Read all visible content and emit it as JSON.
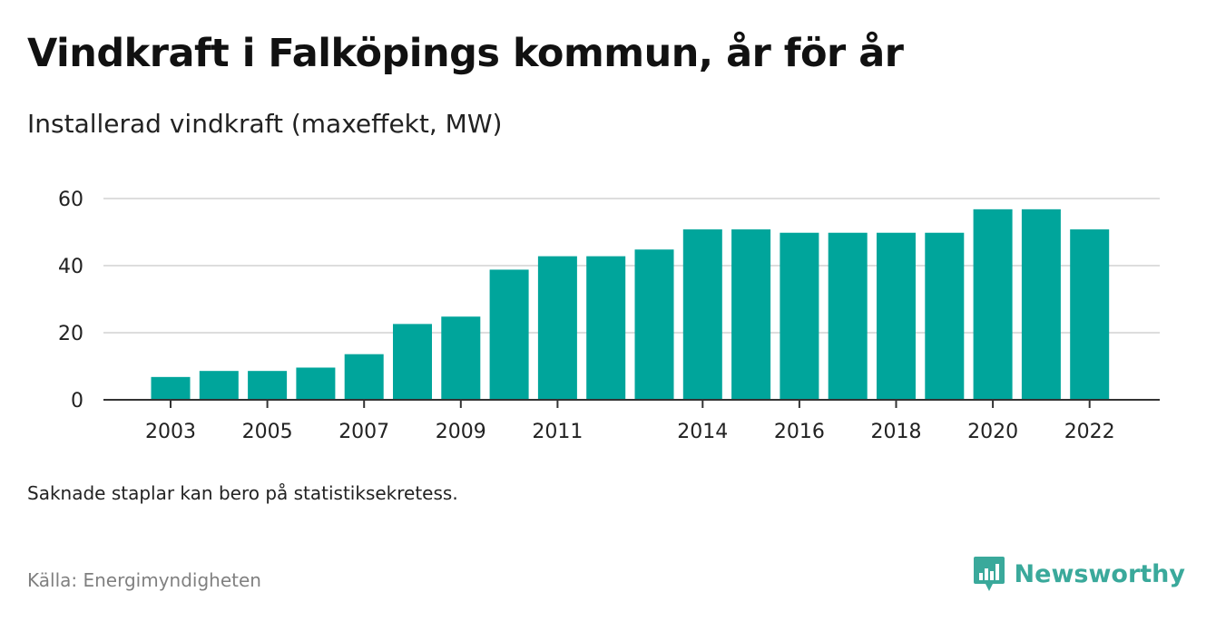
{
  "header": {
    "title": "Vindkraft i Falköpings kommun, år för år",
    "subtitle": "Installerad vindkraft (maxeffekt, MW)"
  },
  "footer": {
    "note": "Saknade staplar kan bero på statistiksekretess.",
    "source": "Källa: Energimyndigheten",
    "brand": "Newsworthy"
  },
  "colors": {
    "bar": "#00a59b",
    "grid": "#dddddd",
    "axis": "#333333",
    "brand": "#3aa99b"
  },
  "icons": {
    "brand_logo": "bar-chart-speech-bubble-icon"
  },
  "chart_data": {
    "type": "bar",
    "title": "Vindkraft i Falköpings kommun, år för år",
    "subtitle": "Installerad vindkraft (maxeffekt, MW)",
    "xlabel": "",
    "ylabel": "",
    "categories": [
      2003,
      2004,
      2005,
      2006,
      2007,
      2008,
      2009,
      2010,
      2011,
      2012,
      2013,
      2014,
      2015,
      2016,
      2017,
      2018,
      2019,
      2020,
      2021,
      2022
    ],
    "values": [
      6.8,
      8.6,
      8.6,
      9.6,
      13.6,
      22.6,
      24.8,
      38.8,
      42.8,
      42.8,
      44.8,
      50.8,
      50.8,
      49.8,
      49.8,
      49.8,
      49.8,
      56.8,
      56.8,
      50.8
    ],
    "x_tick_labels": [
      "2003",
      "2005",
      "2007",
      "2009",
      "2011",
      "2014",
      "2016",
      "2018",
      "2020",
      "2022"
    ],
    "y_ticks": [
      0,
      20,
      40,
      60
    ],
    "ylim": [
      0,
      60
    ],
    "grid": true,
    "legend": "none"
  }
}
